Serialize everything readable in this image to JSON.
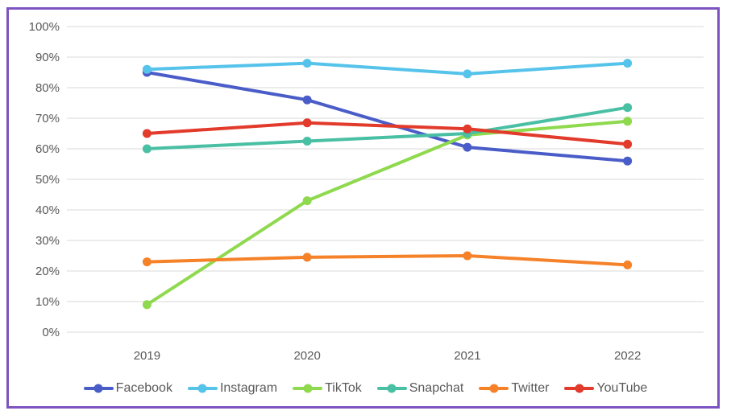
{
  "frame": {
    "border_color": "#7D53C1",
    "background_color": "#FFFFFF"
  },
  "chart_data": {
    "type": "line",
    "title": "",
    "categories": [
      "2019",
      "2020",
      "2021",
      "2022"
    ],
    "series": [
      {
        "name": "Facebook",
        "color": "#4A5CC8",
        "values": [
          85,
          76,
          60.5,
          56
        ]
      },
      {
        "name": "Instagram",
        "color": "#55C3EA",
        "values": [
          86,
          88,
          84.5,
          88
        ]
      },
      {
        "name": "TikTok",
        "color": "#8FD94E",
        "values": [
          9,
          43,
          64.5,
          69
        ]
      },
      {
        "name": "Snapchat",
        "color": "#49BFA4",
        "values": [
          60,
          62.5,
          65,
          73.5
        ]
      },
      {
        "name": "Twitter",
        "color": "#F58229",
        "values": [
          23,
          24.5,
          25,
          22
        ]
      },
      {
        "name": "YouTube",
        "color": "#E23A2B",
        "values": [
          65,
          68.5,
          66.5,
          61.5
        ]
      }
    ],
    "y_axis": {
      "min": 0,
      "max": 100,
      "step": 10,
      "tick_labels": [
        "0%",
        "10%",
        "20%",
        "30%",
        "40%",
        "50%",
        "60%",
        "70%",
        "80%",
        "90%",
        "100%"
      ],
      "format": "percent"
    },
    "x_axis": {
      "tick_labels": [
        "2019",
        "2020",
        "2021",
        "2022"
      ]
    },
    "grid": true,
    "legend_position": "bottom",
    "gridline_color": "#D9D9D9",
    "text_color": "#595959"
  }
}
